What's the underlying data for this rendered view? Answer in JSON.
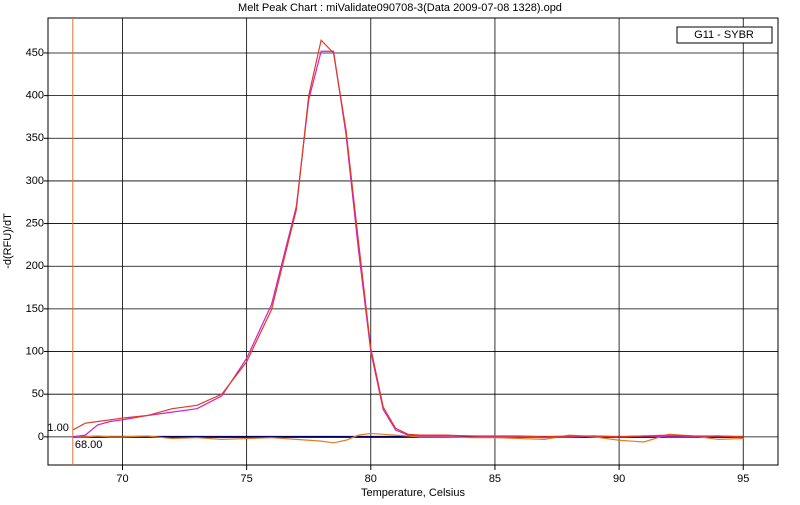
{
  "chart_data": {
    "type": "line",
    "title": "Melt Peak Chart : miValidate090708-3(Data 2009-07-08 1328).opd",
    "x_label": "Temperature, Celsius",
    "y_label": "-d(RFU)/dT",
    "legend_label": "G11 - SYBR",
    "x": [
      68,
      68.5,
      69,
      69.5,
      70,
      71,
      72,
      73,
      74,
      75,
      76,
      77,
      77.5,
      78,
      78.5,
      79,
      79.5,
      80,
      80.5,
      81,
      81.5,
      82,
      83,
      84,
      85,
      86,
      87,
      88,
      89,
      90,
      91,
      92,
      93,
      94,
      95
    ],
    "series": [
      {
        "color": "#e03c1e",
        "values": [
          8,
          16,
          18,
          20,
          22,
          25,
          33,
          37,
          50,
          88,
          149,
          266,
          400,
          465,
          450,
          360,
          230,
          104,
          35,
          10,
          3,
          2,
          2,
          1,
          1,
          1,
          0,
          1,
          1,
          0,
          1,
          2,
          1,
          1,
          0
        ]
      },
      {
        "color": "#d020d0",
        "values": [
          0,
          2,
          14,
          18,
          20,
          25,
          29,
          33,
          48,
          92,
          155,
          270,
          395,
          452,
          452,
          355,
          220,
          100,
          32,
          8,
          2,
          1,
          1,
          1,
          0,
          0,
          -1,
          0,
          1,
          0,
          1,
          0,
          0,
          1,
          0
        ]
      },
      {
        "color": "#e08020",
        "values": [
          0,
          0,
          1,
          0,
          0,
          1,
          -2,
          -1,
          -3,
          -2,
          -1,
          -3,
          -4,
          -5,
          -7,
          -4,
          2,
          4,
          3,
          2,
          1,
          0,
          0,
          -1,
          -1,
          -2,
          -3,
          2,
          0,
          -4,
          -6,
          3,
          1,
          -3,
          -2
        ]
      },
      {
        "color": "#000066",
        "values": [
          0,
          0,
          0,
          0,
          0,
          0,
          0,
          0,
          0,
          0,
          0,
          0,
          0,
          0,
          0,
          0,
          0,
          0,
          0,
          0,
          0,
          0,
          0,
          0,
          0,
          0,
          0,
          0,
          0,
          0,
          0,
          0,
          0,
          0,
          0
        ]
      }
    ],
    "marker": {
      "x": 68,
      "x_label": "68.00",
      "y": 1,
      "y_label": "1.00",
      "color": "#e07030"
    },
    "xlim": [
      67,
      96.4
    ],
    "ylim": [
      -33,
      491
    ],
    "xticks": [
      70,
      75,
      80,
      85,
      90,
      95
    ],
    "yticks": [
      0,
      50,
      100,
      150,
      200,
      250,
      300,
      350,
      400,
      450
    ],
    "grid": true
  }
}
